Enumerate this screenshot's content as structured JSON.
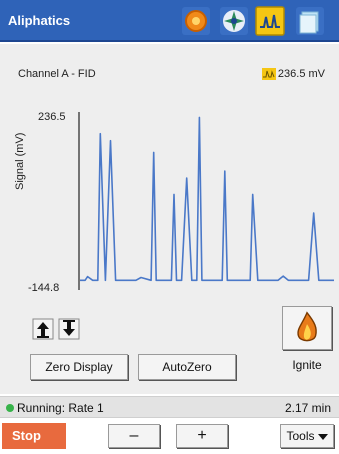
{
  "app": {
    "title": "Aliphatics"
  },
  "toolbar": {
    "icons": [
      "target-icon",
      "gear-fan-icon",
      "signal-icon",
      "document-icon"
    ],
    "colors": {
      "titlebar": "#2f63b8",
      "stop": "#e86a3e",
      "running": "#37b34a",
      "trace": "#4a78c8"
    }
  },
  "channel": {
    "label": "Channel A - FID",
    "value": "236.5 mV"
  },
  "chart_data": {
    "type": "line",
    "ylabel": "Signal (mV)",
    "y_max_label": "236.5",
    "y_min_label": "-144.8",
    "ylim": [
      -144.8,
      236.5
    ],
    "grid": false,
    "series": [
      {
        "x": [
          0,
          0.02,
          0.03,
          0.05,
          0.07,
          0.08,
          0.1,
          0.12,
          0.14,
          0.16,
          0.18,
          0.2,
          0.22,
          0.24,
          0.28,
          0.29,
          0.3,
          0.32,
          0.34,
          0.36,
          0.37,
          0.38,
          0.4,
          0.42,
          0.44,
          0.46,
          0.47,
          0.48,
          0.5,
          0.52,
          0.54,
          0.56,
          0.57,
          0.58,
          0.6,
          0.62,
          0.64,
          0.66,
          0.67,
          0.68,
          0.7,
          0.72,
          0.74,
          0.76,
          0.78,
          0.8,
          0.82,
          0.84,
          0.86,
          0.88,
          0.9,
          0.92,
          0.94,
          0.96,
          0.98,
          1.0
        ],
        "y": [
          -124,
          -124,
          -116,
          -124,
          -124,
          190,
          -124,
          175,
          -124,
          -124,
          -124,
          -124,
          -124,
          -118,
          -124,
          150,
          -124,
          -124,
          -124,
          -124,
          60,
          -124,
          -124,
          95,
          -124,
          -124,
          225,
          -124,
          -124,
          -124,
          -124,
          -124,
          110,
          -124,
          -124,
          -124,
          -124,
          -124,
          -124,
          60,
          -124,
          -124,
          -124,
          -124,
          -124,
          -115,
          -124,
          -124,
          -124,
          -124,
          -124,
          20,
          -124,
          -124,
          -124,
          -124
        ]
      }
    ]
  },
  "controls": {
    "up_arrow": "↥",
    "down_arrow": "↧",
    "zero_display": "Zero Display",
    "autozero": "AutoZero",
    "ignite": "Ignite"
  },
  "status": {
    "text": "Running: Rate 1",
    "time": "2.17 min"
  },
  "bottom": {
    "stop": "Stop",
    "minus": "–",
    "plus": "+",
    "tools": "Tools"
  }
}
